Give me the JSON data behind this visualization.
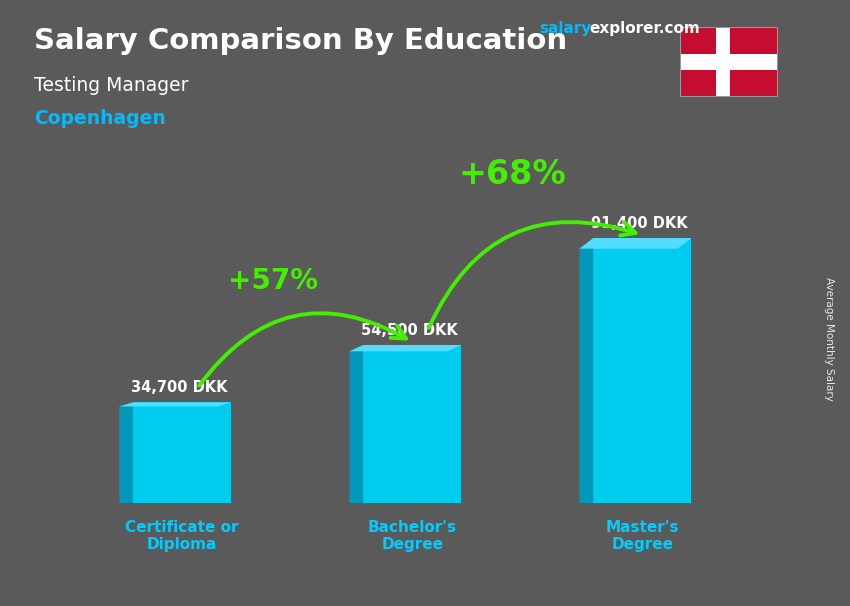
{
  "title": "Salary Comparison By Education",
  "subtitle": "Testing Manager",
  "location": "Copenhagen",
  "categories": [
    "Certificate or\nDiploma",
    "Bachelor's\nDegree",
    "Master's\nDegree"
  ],
  "values": [
    34700,
    54500,
    91400
  ],
  "value_labels": [
    "34,700 DKK",
    "54,500 DKK",
    "91,400 DKK"
  ],
  "bar_face_color": "#00ccee",
  "bar_left_color": "#0099bb",
  "bar_top_color": "#55ddff",
  "bg_color": "#5a5a5a",
  "title_color": "#ffffff",
  "subtitle_color": "#ffffff",
  "location_color": "#00bbff",
  "category_color": "#00ccff",
  "value_color": "#ffffff",
  "arrow_color": "#44ee00",
  "percent_labels": [
    "+57%",
    "+68%"
  ],
  "percent_color": "#44ee00",
  "ylabel": "Average Monthly Salary",
  "website_salary": "salary",
  "website_explorer": "explorer",
  "website_com": ".com",
  "website_color_salary": "#00bbff",
  "website_color_explorer": "#ffffff",
  "website_color_com": "#ffffff",
  "ylim": [
    0,
    115000
  ],
  "bar_width": 0.32,
  "x_positions": [
    0.25,
    1.0,
    1.75
  ],
  "x_lim": [
    -0.15,
    2.15
  ]
}
